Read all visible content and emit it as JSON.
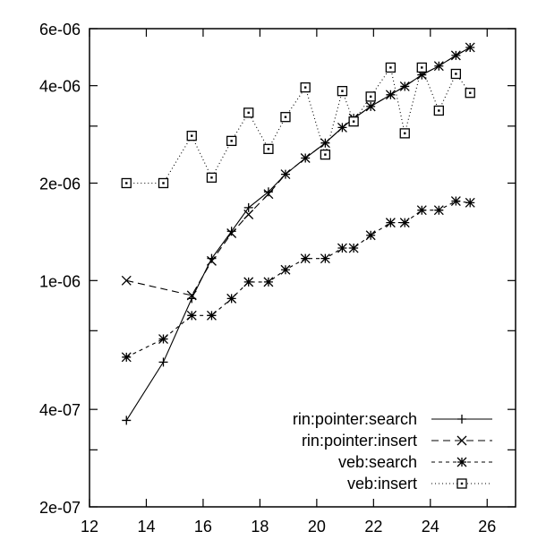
{
  "chart_data": {
    "type": "line",
    "title": "",
    "xlabel": "",
    "ylabel": "",
    "xlim": [
      12,
      27
    ],
    "ylim": [
      2e-07,
      6e-06
    ],
    "yscale": "log",
    "grid": false,
    "legend_position": "bottom-right",
    "xticks": [
      12,
      14,
      16,
      18,
      20,
      22,
      24,
      26
    ],
    "xtick_labels": [
      "12",
      "14",
      "16",
      "18",
      "20",
      "22",
      "24",
      "26"
    ],
    "yticks": [
      2e-07,
      4e-07,
      1e-06,
      2e-06,
      4e-06,
      6e-06
    ],
    "ytick_labels": [
      "2e-07",
      "4e-07",
      "1e-06",
      "2e-06",
      "4e-06",
      "6e-06"
    ],
    "series": [
      {
        "name": "rin:pointer:search",
        "marker": "plus",
        "dash": "",
        "x": [
          13.3,
          14.6,
          15.6,
          16.3,
          17.0,
          17.6,
          18.3,
          18.9,
          19.6,
          20.3,
          20.9,
          21.3,
          21.9,
          22.6,
          23.1,
          23.7,
          24.3,
          24.9,
          25.4
        ],
        "y": [
          3.7e-07,
          5.6e-07,
          8.8e-07,
          1.17e-06,
          1.42e-06,
          1.68e-06,
          1.88e-06,
          2.13e-06,
          2.39e-06,
          2.66e-06,
          2.97e-06,
          3.17e-06,
          3.45e-06,
          3.75e-06,
          3.98e-06,
          4.32e-06,
          4.6e-06,
          4.96e-06,
          5.25e-06
        ]
      },
      {
        "name": "rin:pointer:insert",
        "marker": "x",
        "dash": "8,5",
        "x": [
          13.3,
          15.6,
          16.3,
          17.0,
          17.6,
          18.3,
          18.9,
          19.6,
          20.3,
          20.9,
          21.3,
          21.9,
          22.6,
          23.1,
          23.7,
          24.3,
          24.9,
          25.4
        ],
        "y": [
          1e-06,
          9e-07,
          1.15e-06,
          1.4e-06,
          1.6e-06,
          1.85e-06,
          2.13e-06,
          2.39e-06,
          2.66e-06,
          2.97e-06,
          3.17e-06,
          3.45e-06,
          3.75e-06,
          3.98e-06,
          4.32e-06,
          4.6e-06,
          4.96e-06,
          5.25e-06
        ]
      },
      {
        "name": "veb:search",
        "marker": "star",
        "dash": "4,4",
        "x": [
          13.3,
          14.6,
          15.6,
          16.3,
          17.0,
          17.6,
          18.3,
          18.9,
          19.6,
          20.3,
          20.9,
          21.3,
          21.9,
          22.6,
          23.1,
          23.7,
          24.3,
          24.9,
          25.4
        ],
        "y": [
          5.8e-07,
          6.6e-07,
          7.8e-07,
          7.8e-07,
          8.8e-07,
          9.9e-07,
          9.9e-07,
          1.08e-06,
          1.17e-06,
          1.17e-06,
          1.26e-06,
          1.26e-06,
          1.38e-06,
          1.51e-06,
          1.51e-06,
          1.65e-06,
          1.65e-06,
          1.76e-06,
          1.74e-06
        ]
      },
      {
        "name": "veb:insert",
        "marker": "square-dot",
        "dash": "1,3",
        "x": [
          13.3,
          14.6,
          15.6,
          16.3,
          17.0,
          17.6,
          18.3,
          18.9,
          19.6,
          20.3,
          20.9,
          21.3,
          21.9,
          22.6,
          23.1,
          23.7,
          24.3,
          24.9,
          25.4
        ],
        "y": [
          2e-06,
          2e-06,
          2.8e-06,
          2.08e-06,
          2.7e-06,
          3.3e-06,
          2.55e-06,
          3.2e-06,
          3.95e-06,
          2.45e-06,
          3.85e-06,
          3.1e-06,
          3.7e-06,
          4.55e-06,
          2.85e-06,
          4.55e-06,
          3.35e-06,
          4.35e-06,
          3.8e-06
        ]
      }
    ]
  }
}
